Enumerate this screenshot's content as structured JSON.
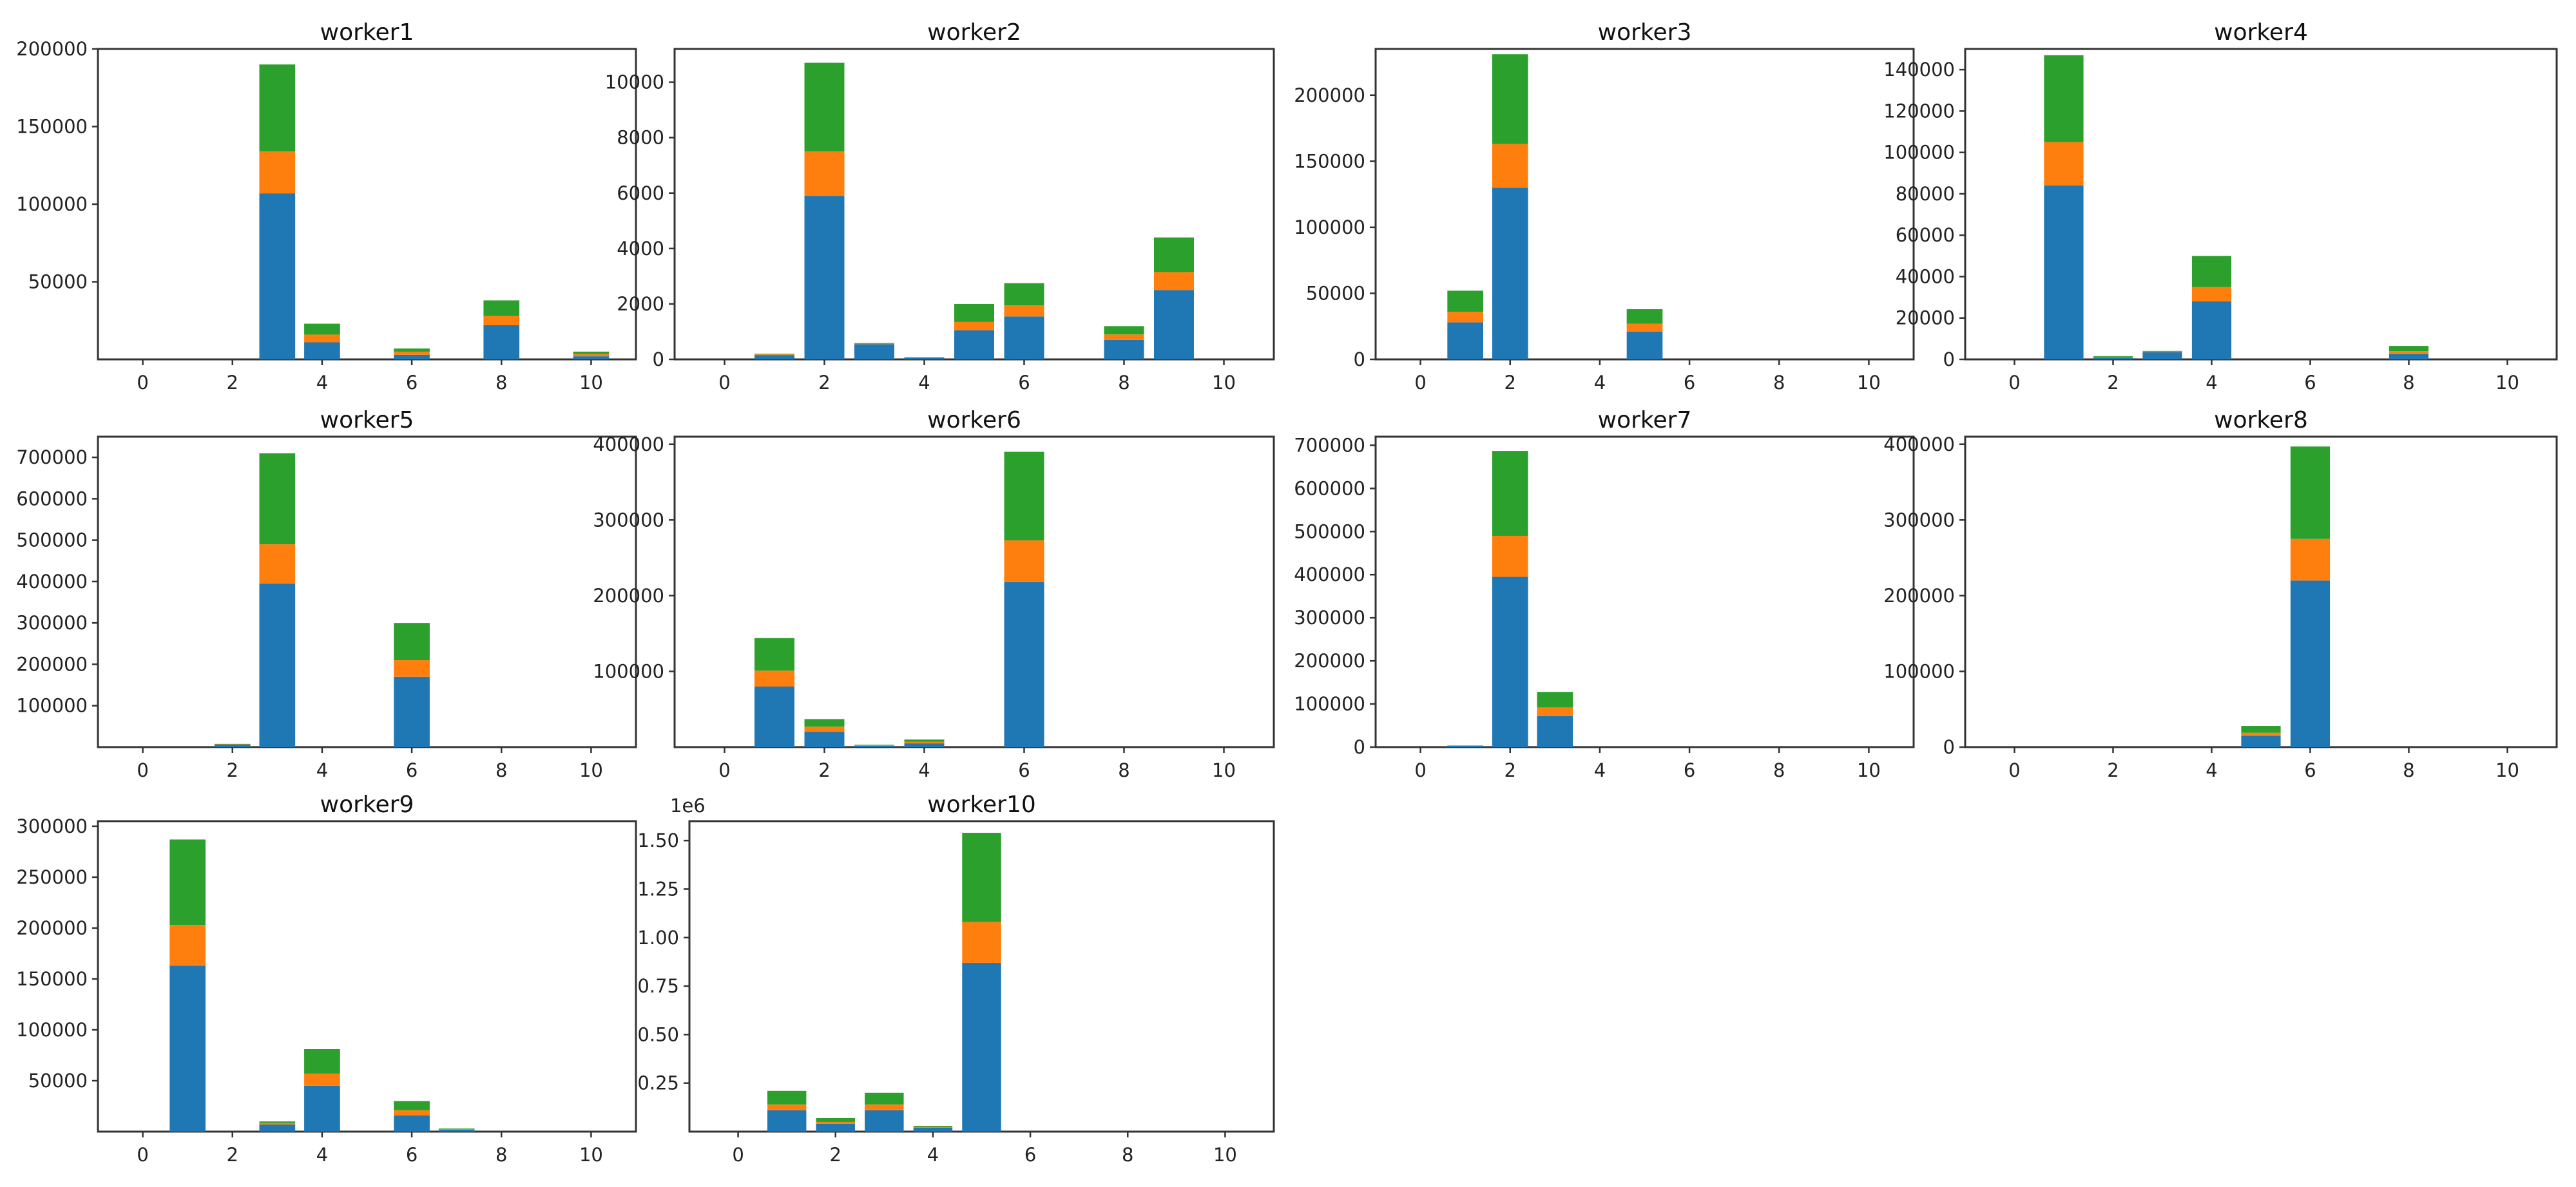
{
  "colors": {
    "seg1": "#1f77b4",
    "seg2": "#ff7f0e",
    "seg3": "#2ca02c"
  },
  "chart_data": [
    {
      "type": "bar",
      "stacked": true,
      "title": "worker1",
      "xlim": [
        -1,
        11
      ],
      "ylim": [
        0,
        200000
      ],
      "xticks": [
        0,
        2,
        4,
        6,
        8,
        10
      ],
      "yticks": [
        50000,
        100000,
        150000,
        200000
      ],
      "bars": [
        {
          "x": 3,
          "values": [
            107000,
            27000,
            56000
          ]
        },
        {
          "x": 4,
          "values": [
            11000,
            5000,
            7000
          ]
        },
        {
          "x": 6,
          "values": [
            3000,
            2000,
            2000
          ]
        },
        {
          "x": 8,
          "values": [
            22000,
            6000,
            10000
          ]
        },
        {
          "x": 10,
          "values": [
            2000,
            1500,
            1500
          ]
        }
      ]
    },
    {
      "type": "bar",
      "stacked": true,
      "title": "worker2",
      "xlim": [
        -1,
        11
      ],
      "ylim": [
        0,
        11200
      ],
      "xticks": [
        0,
        2,
        4,
        6,
        8,
        10
      ],
      "yticks": [
        0,
        2000,
        4000,
        6000,
        8000,
        10000
      ],
      "bars": [
        {
          "x": 1,
          "values": [
            150,
            30,
            20
          ]
        },
        {
          "x": 2,
          "values": [
            5900,
            1600,
            3200
          ]
        },
        {
          "x": 3,
          "values": [
            550,
            20,
            20
          ]
        },
        {
          "x": 4,
          "values": [
            60,
            10,
            10
          ]
        },
        {
          "x": 5,
          "values": [
            1050,
            300,
            650
          ]
        },
        {
          "x": 6,
          "values": [
            1550,
            400,
            800
          ]
        },
        {
          "x": 8,
          "values": [
            700,
            200,
            300
          ]
        },
        {
          "x": 9,
          "values": [
            2500,
            650,
            1250
          ]
        }
      ]
    },
    {
      "type": "bar",
      "stacked": true,
      "title": "worker3",
      "xlim": [
        -1,
        11
      ],
      "ylim": [
        0,
        235000
      ],
      "xticks": [
        0,
        2,
        4,
        6,
        8,
        10
      ],
      "yticks": [
        0,
        50000,
        100000,
        150000,
        200000
      ],
      "bars": [
        {
          "x": 1,
          "values": [
            28000,
            8000,
            16000
          ]
        },
        {
          "x": 2,
          "values": [
            130000,
            33000,
            68000
          ]
        },
        {
          "x": 5,
          "values": [
            21000,
            6000,
            11000
          ]
        }
      ]
    },
    {
      "type": "bar",
      "stacked": true,
      "title": "worker4",
      "xlim": [
        -1,
        11
      ],
      "ylim": [
        0,
        150000
      ],
      "xticks": [
        0,
        2,
        4,
        6,
        8,
        10
      ],
      "yticks": [
        0,
        20000,
        40000,
        60000,
        80000,
        100000,
        120000,
        140000
      ],
      "bars": [
        {
          "x": 1,
          "values": [
            84000,
            21000,
            42000
          ]
        },
        {
          "x": 2,
          "values": [
            1000,
            300,
            300
          ]
        },
        {
          "x": 3,
          "values": [
            3500,
            300,
            300
          ]
        },
        {
          "x": 4,
          "values": [
            28000,
            7000,
            15000
          ]
        },
        {
          "x": 8,
          "values": [
            2500,
            1500,
            2500
          ]
        }
      ]
    },
    {
      "type": "bar",
      "stacked": true,
      "title": "worker5",
      "xlim": [
        -1,
        11
      ],
      "ylim": [
        0,
        750000
      ],
      "xticks": [
        0,
        2,
        4,
        6,
        8,
        10
      ],
      "yticks": [
        100000,
        200000,
        300000,
        400000,
        500000,
        600000,
        700000
      ],
      "bars": [
        {
          "x": 2,
          "values": [
            6000,
            1000,
            1000
          ]
        },
        {
          "x": 3,
          "values": [
            395000,
            95000,
            220000
          ]
        },
        {
          "x": 6,
          "values": [
            170000,
            40000,
            90000
          ]
        }
      ]
    },
    {
      "type": "bar",
      "stacked": true,
      "title": "worker6",
      "xlim": [
        -1,
        11
      ],
      "ylim": [
        0,
        410000
      ],
      "xticks": [
        0,
        2,
        4,
        6,
        8,
        10
      ],
      "yticks": [
        100000,
        200000,
        300000,
        400000
      ],
      "bars": [
        {
          "x": 1,
          "values": [
            80000,
            21000,
            43000
          ]
        },
        {
          "x": 2,
          "values": [
            20000,
            7000,
            10000
          ]
        },
        {
          "x": 3,
          "values": [
            2000,
            500,
            500
          ]
        },
        {
          "x": 4,
          "values": [
            5000,
            2000,
            3000
          ]
        },
        {
          "x": 6,
          "values": [
            218000,
            55000,
            117000
          ]
        }
      ]
    },
    {
      "type": "bar",
      "stacked": true,
      "title": "worker7",
      "xlim": [
        -1,
        11
      ],
      "ylim": [
        0,
        720000
      ],
      "xticks": [
        0,
        2,
        4,
        6,
        8,
        10
      ],
      "yticks": [
        0,
        100000,
        200000,
        300000,
        400000,
        500000,
        600000,
        700000
      ],
      "bars": [
        {
          "x": 1,
          "values": [
            3000,
            500,
            500
          ]
        },
        {
          "x": 2,
          "values": [
            395000,
            95000,
            197000
          ]
        },
        {
          "x": 3,
          "values": [
            72000,
            20000,
            36000
          ]
        }
      ]
    },
    {
      "type": "bar",
      "stacked": true,
      "title": "worker8",
      "xlim": [
        -1,
        11
      ],
      "ylim": [
        0,
        410000
      ],
      "xticks": [
        0,
        2,
        4,
        6,
        8,
        10
      ],
      "yticks": [
        0,
        100000,
        200000,
        300000,
        400000
      ],
      "bars": [
        {
          "x": 5,
          "values": [
            15000,
            4000,
            9000
          ]
        },
        {
          "x": 6,
          "values": [
            220000,
            55000,
            122000
          ]
        }
      ]
    },
    {
      "type": "bar",
      "stacked": true,
      "title": "worker9",
      "xlim": [
        -1,
        11
      ],
      "ylim": [
        0,
        305000
      ],
      "xticks": [
        0,
        2,
        4,
        6,
        8,
        10
      ],
      "yticks": [
        50000,
        100000,
        150000,
        200000,
        250000,
        300000
      ],
      "bars": [
        {
          "x": 1,
          "values": [
            163000,
            40000,
            84000
          ]
        },
        {
          "x": 3,
          "values": [
            7000,
            1500,
            1500
          ]
        },
        {
          "x": 4,
          "values": [
            45000,
            12000,
            24000
          ]
        },
        {
          "x": 6,
          "values": [
            16000,
            5000,
            9000
          ]
        },
        {
          "x": 7,
          "values": [
            2000,
            500,
            500
          ]
        }
      ]
    },
    {
      "type": "bar",
      "stacked": true,
      "title": "worker10",
      "xlim": [
        -1,
        11
      ],
      "ylim": [
        0,
        1.6
      ],
      "offset_label": "1e6",
      "xticks": [
        0,
        2,
        4,
        6,
        8,
        10
      ],
      "yticks": [
        0.25,
        0.5,
        0.75,
        1.0,
        1.25,
        1.5
      ],
      "ytick_labels": [
        "0.25",
        "0.50",
        "0.75",
        "1.00",
        "1.25",
        "1.50"
      ],
      "bars": [
        {
          "x": 1,
          "values": [
            0.11,
            0.03,
            0.07
          ]
        },
        {
          "x": 2,
          "values": [
            0.04,
            0.01,
            0.02
          ]
        },
        {
          "x": 3,
          "values": [
            0.11,
            0.03,
            0.06
          ]
        },
        {
          "x": 4,
          "values": [
            0.02,
            0.005,
            0.005
          ]
        },
        {
          "x": 5,
          "values": [
            0.87,
            0.21,
            0.46
          ]
        }
      ]
    }
  ]
}
